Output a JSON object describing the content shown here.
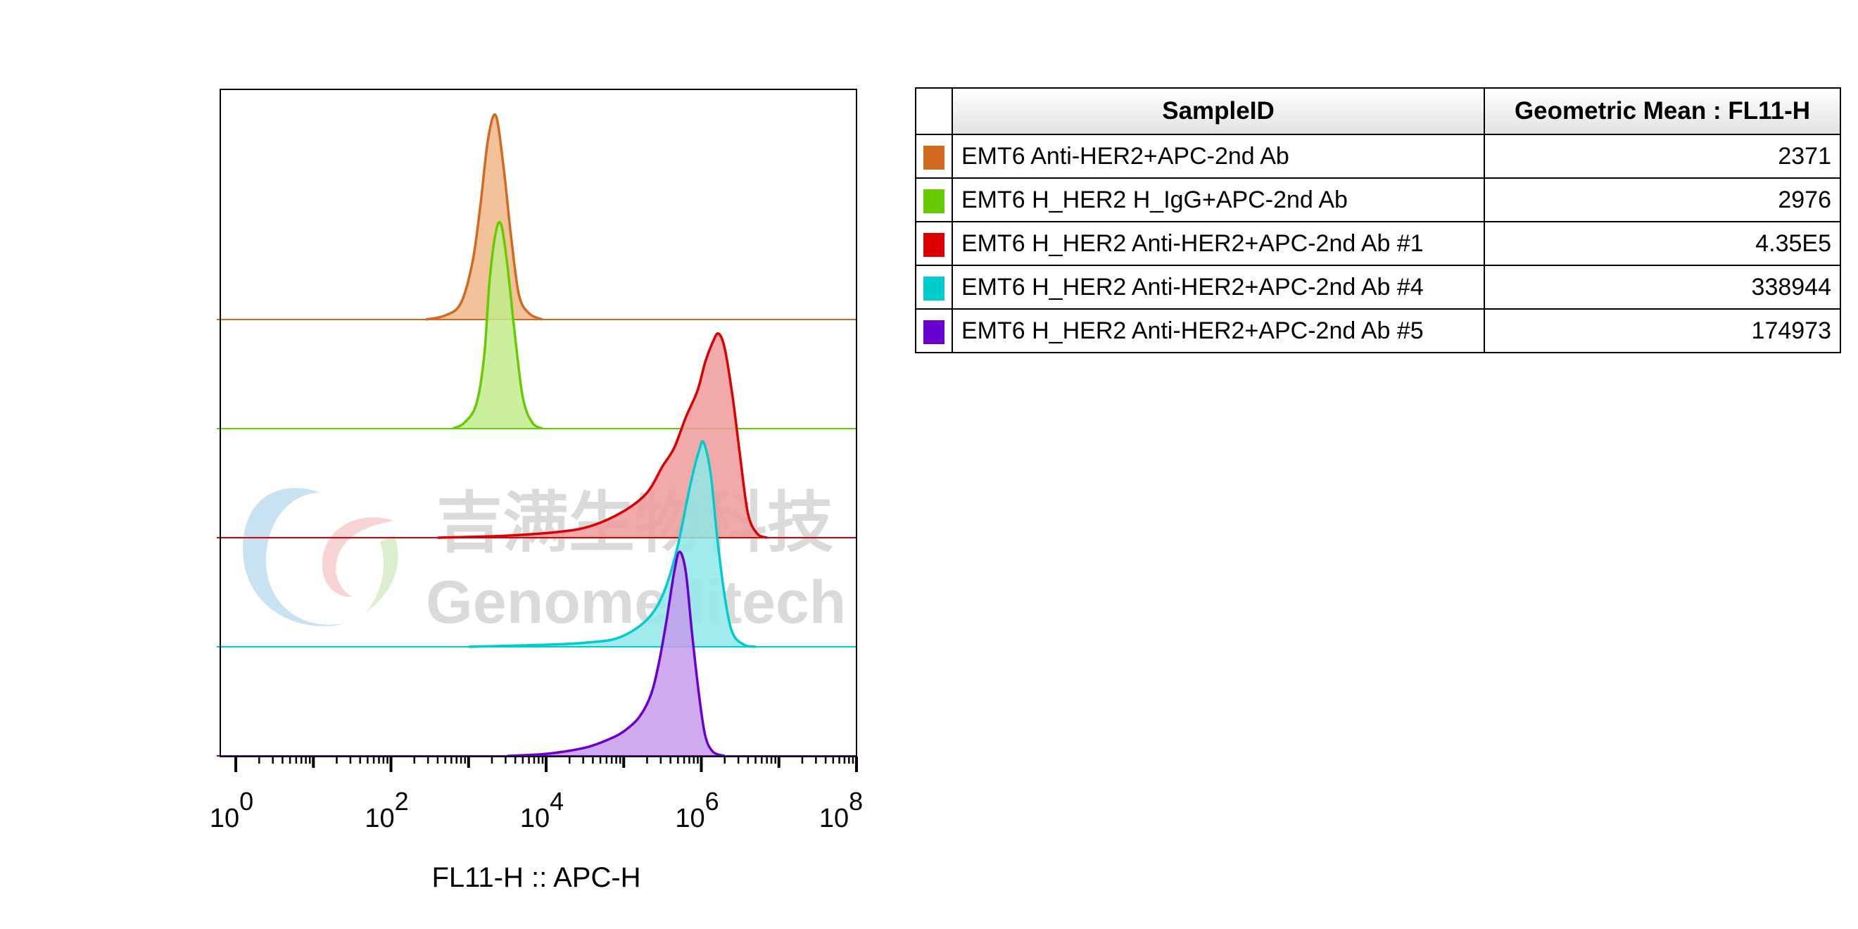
{
  "watermark": {
    "cn_text": "吉满生物科技",
    "en_text": "Genomeditech"
  },
  "table": {
    "header_sample": "SampleID",
    "header_value": "Geometric Mean : FL11-H",
    "rows": [
      {
        "color": "#D2691E",
        "name": "EMT6 Anti-HER2+APC-2nd Ab",
        "value": "2371"
      },
      {
        "color": "#66CC00",
        "name": "EMT6 H_HER2 H_IgG+APC-2nd Ab",
        "value": "2976"
      },
      {
        "color": "#DD0000",
        "name": "EMT6 H_HER2 Anti-HER2+APC-2nd Ab #1",
        "value": "4.35E5"
      },
      {
        "color": "#00CCCC",
        "name": "EMT6 H_HER2 Anti-HER2+APC-2nd Ab #4",
        "value": "338944"
      },
      {
        "color": "#6A00D0",
        "name": "EMT6 H_HER2 Anti-HER2+APC-2nd Ab #5",
        "value": "174973"
      }
    ]
  },
  "chart_data": {
    "type": "area",
    "subtype": "offset histogram overlay",
    "title": "",
    "xlabel": "FL11-H :: APC-H",
    "ylabel": "",
    "x_scale": "log",
    "xlim_log10": [
      -0.2,
      8.0
    ],
    "x_ticks": [
      {
        "base": "10",
        "exp": "0",
        "log": 0
      },
      {
        "base": "10",
        "exp": "2",
        "log": 2
      },
      {
        "base": "10",
        "exp": "4",
        "log": 4
      },
      {
        "base": "10",
        "exp": "6",
        "log": 6
      },
      {
        "base": "10",
        "exp": "8",
        "log": 8
      }
    ],
    "grid": false,
    "legend": "table to the right of the plot",
    "series": [
      {
        "name": "EMT6 Anti-HER2+APC-2nd Ab",
        "color": "#D2691E",
        "fill": "#F0B98A",
        "points": [
          [
            2.45,
            0
          ],
          [
            2.7,
            0.02
          ],
          [
            2.9,
            0.08
          ],
          [
            3.05,
            0.28
          ],
          [
            3.15,
            0.55
          ],
          [
            3.25,
            0.88
          ],
          [
            3.35,
            1.0
          ],
          [
            3.45,
            0.75
          ],
          [
            3.55,
            0.4
          ],
          [
            3.65,
            0.12
          ],
          [
            3.78,
            0.03
          ],
          [
            3.95,
            0
          ]
        ]
      },
      {
        "name": "EMT6 H_HER2 H_IgG+APC-2nd Ab",
        "color": "#66CC00",
        "fill": "#C2EC8C",
        "points": [
          [
            2.8,
            0
          ],
          [
            2.95,
            0.03
          ],
          [
            3.1,
            0.12
          ],
          [
            3.2,
            0.35
          ],
          [
            3.27,
            0.72
          ],
          [
            3.35,
            0.96
          ],
          [
            3.42,
            1.0
          ],
          [
            3.5,
            0.8
          ],
          [
            3.6,
            0.45
          ],
          [
            3.7,
            0.15
          ],
          [
            3.82,
            0.03
          ],
          [
            3.95,
            0
          ]
        ]
      },
      {
        "name": "EMT6 H_HER2 Anti-HER2+APC-2nd Ab #1",
        "color": "#DD0000",
        "fill": "#EF9A9A",
        "points": [
          [
            2.6,
            0
          ],
          [
            3.5,
            0.01
          ],
          [
            4.2,
            0.03
          ],
          [
            4.6,
            0.06
          ],
          [
            5.0,
            0.13
          ],
          [
            5.3,
            0.22
          ],
          [
            5.5,
            0.35
          ],
          [
            5.65,
            0.44
          ],
          [
            5.8,
            0.59
          ],
          [
            5.95,
            0.72
          ],
          [
            6.05,
            0.86
          ],
          [
            6.15,
            0.96
          ],
          [
            6.22,
            1.0
          ],
          [
            6.3,
            0.93
          ],
          [
            6.4,
            0.7
          ],
          [
            6.5,
            0.4
          ],
          [
            6.6,
            0.12
          ],
          [
            6.72,
            0.02
          ],
          [
            6.85,
            0
          ]
        ]
      },
      {
        "name": "EMT6 H_HER2 Anti-HER2+APC-2nd Ab #4",
        "color": "#00CCCC",
        "fill": "#8FE8E8",
        "points": [
          [
            3.0,
            0
          ],
          [
            4.0,
            0.01
          ],
          [
            4.5,
            0.02
          ],
          [
            4.9,
            0.04
          ],
          [
            5.2,
            0.1
          ],
          [
            5.4,
            0.18
          ],
          [
            5.55,
            0.3
          ],
          [
            5.7,
            0.5
          ],
          [
            5.85,
            0.78
          ],
          [
            5.97,
            0.96
          ],
          [
            6.03,
            1.0
          ],
          [
            6.12,
            0.85
          ],
          [
            6.2,
            0.55
          ],
          [
            6.3,
            0.25
          ],
          [
            6.4,
            0.07
          ],
          [
            6.55,
            0.01
          ],
          [
            6.7,
            0
          ]
        ]
      },
      {
        "name": "EMT6 H_HER2 Anti-HER2+APC-2nd Ab #5",
        "color": "#6A00D0",
        "fill": "#C59CEC",
        "points": [
          [
            3.5,
            0
          ],
          [
            4.0,
            0.01
          ],
          [
            4.5,
            0.04
          ],
          [
            4.8,
            0.08
          ],
          [
            5.0,
            0.12
          ],
          [
            5.2,
            0.19
          ],
          [
            5.35,
            0.3
          ],
          [
            5.45,
            0.45
          ],
          [
            5.55,
            0.66
          ],
          [
            5.65,
            0.9
          ],
          [
            5.72,
            1.0
          ],
          [
            5.8,
            0.9
          ],
          [
            5.88,
            0.6
          ],
          [
            5.97,
            0.3
          ],
          [
            6.05,
            0.1
          ],
          [
            6.15,
            0.02
          ],
          [
            6.3,
            0
          ]
        ]
      }
    ]
  }
}
